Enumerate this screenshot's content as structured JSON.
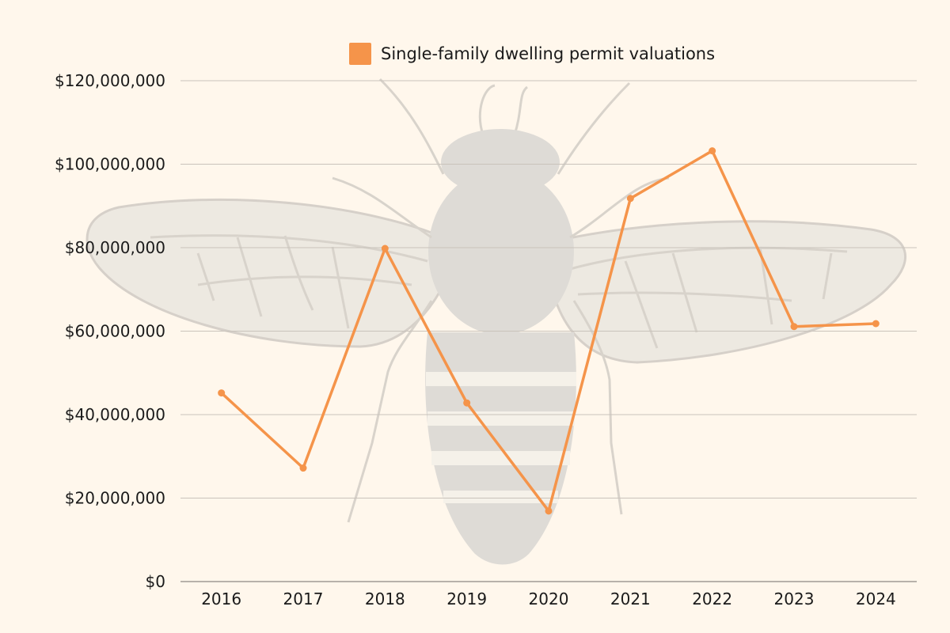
{
  "chart_data": {
    "type": "line",
    "categories": [
      "2016",
      "2017",
      "2018",
      "2019",
      "2020",
      "2021",
      "2022",
      "2023",
      "2024"
    ],
    "series": [
      {
        "name": "Single-family dwelling permit valuations",
        "values": [
          45200000,
          27200000,
          79800000,
          42800000,
          16900000,
          91800000,
          103200000,
          61100000,
          61800000
        ],
        "color": "#f5944a"
      }
    ],
    "ylim": [
      0,
      120000000
    ],
    "yticks": [
      0,
      20000000,
      40000000,
      60000000,
      80000000,
      100000000,
      120000000
    ],
    "ytick_labels": [
      "$0",
      "$20,000,000",
      "$40,000,000",
      "$60,000,000",
      "$80,000,000",
      "$100,000,000",
      "$120,000,000"
    ],
    "grid": true,
    "legend_position": "top-center",
    "background_color": "#fff7ec",
    "background_decoration": "bee-illustration"
  }
}
